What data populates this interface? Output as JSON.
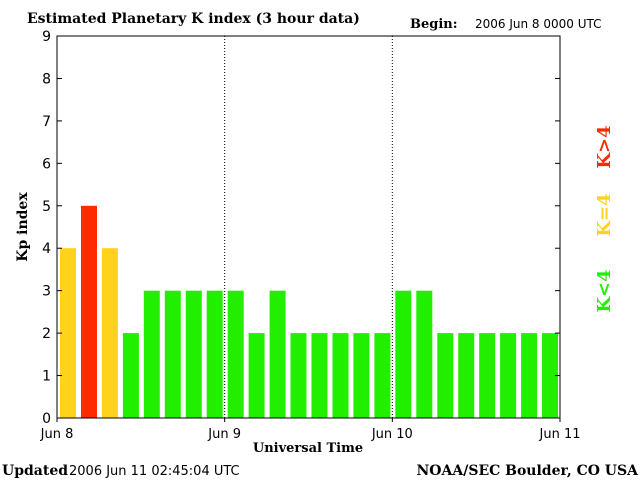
{
  "header": {
    "title": "Estimated Planetary K index (3 hour data)",
    "begin_label": "Begin:",
    "begin_value": "2006 Jun 8 0000 UTC"
  },
  "footer": {
    "updated_label": "Updated",
    "updated_value": "2006 Jun 11 02:45:04 UTC",
    "source": "NOAA/SEC Boulder, CO USA"
  },
  "legend": {
    "high_label": "K>4",
    "mid_label": "K=4",
    "low_label": "K<4"
  },
  "colors": {
    "low": "#22ee00",
    "mid": "#ffd21c",
    "high": "#ff2a00",
    "axis": "#000000",
    "background": "#ffffff"
  },
  "chart_data": {
    "type": "bar",
    "ylabel": "Kp index",
    "xlabel": "Universal Time",
    "ylim": [
      0,
      9
    ],
    "yticks": [
      0,
      1,
      2,
      3,
      4,
      5,
      6,
      7,
      8,
      9
    ],
    "xticks": [
      "Jun 8",
      "Jun 9",
      "Jun 10",
      "Jun 11"
    ],
    "day_separators": [
      "Jun 9",
      "Jun 10"
    ],
    "grid": false,
    "values": [
      4,
      5,
      4,
      2,
      3,
      3,
      3,
      3,
      3,
      2,
      3,
      2,
      2,
      2,
      2,
      2,
      3,
      3,
      2,
      2,
      2,
      2,
      2,
      2
    ]
  }
}
